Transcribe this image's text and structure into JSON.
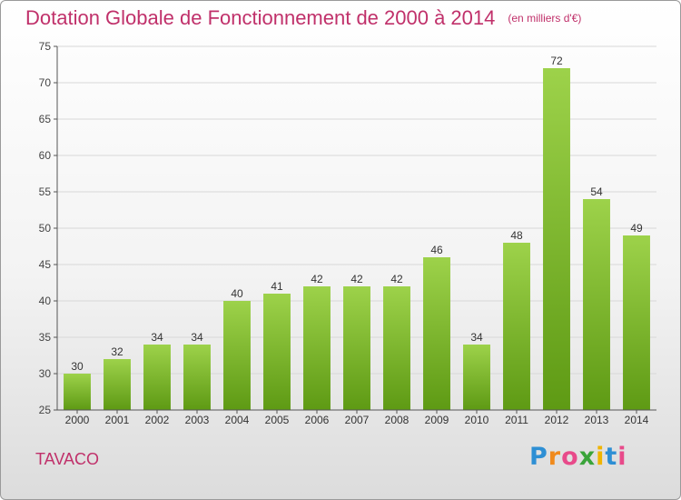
{
  "title": "Dotation Globale de Fonctionnement de 2000 à 2014",
  "subtitle": "(en milliers d'€)",
  "place_name": "TAVACO",
  "brand": {
    "letters": [
      "P",
      "r",
      "o",
      "x",
      "i",
      "t",
      "i"
    ],
    "colors": [
      "#2e8fd4",
      "#f08a1c",
      "#e84a8a",
      "#3aa43a",
      "#f0b400",
      "#2e8fd4",
      "#e84a8a"
    ]
  },
  "colors": {
    "bar_light": "#9dd24a",
    "bar_dark": "#5e9a14",
    "title": "#c0306a",
    "grid": "#d8d8d8"
  },
  "chart_data": {
    "type": "bar",
    "categories": [
      "2000",
      "2001",
      "2002",
      "2003",
      "2004",
      "2005",
      "2006",
      "2007",
      "2008",
      "2009",
      "2010",
      "2011",
      "2012",
      "2013",
      "2014"
    ],
    "values": [
      30,
      32,
      34,
      34,
      40,
      41,
      42,
      42,
      42,
      46,
      34,
      48,
      72,
      54,
      49
    ],
    "ylim": [
      25,
      75
    ],
    "yticks": [
      25,
      30,
      35,
      40,
      45,
      50,
      55,
      60,
      65,
      70,
      75
    ],
    "grid": true
  }
}
